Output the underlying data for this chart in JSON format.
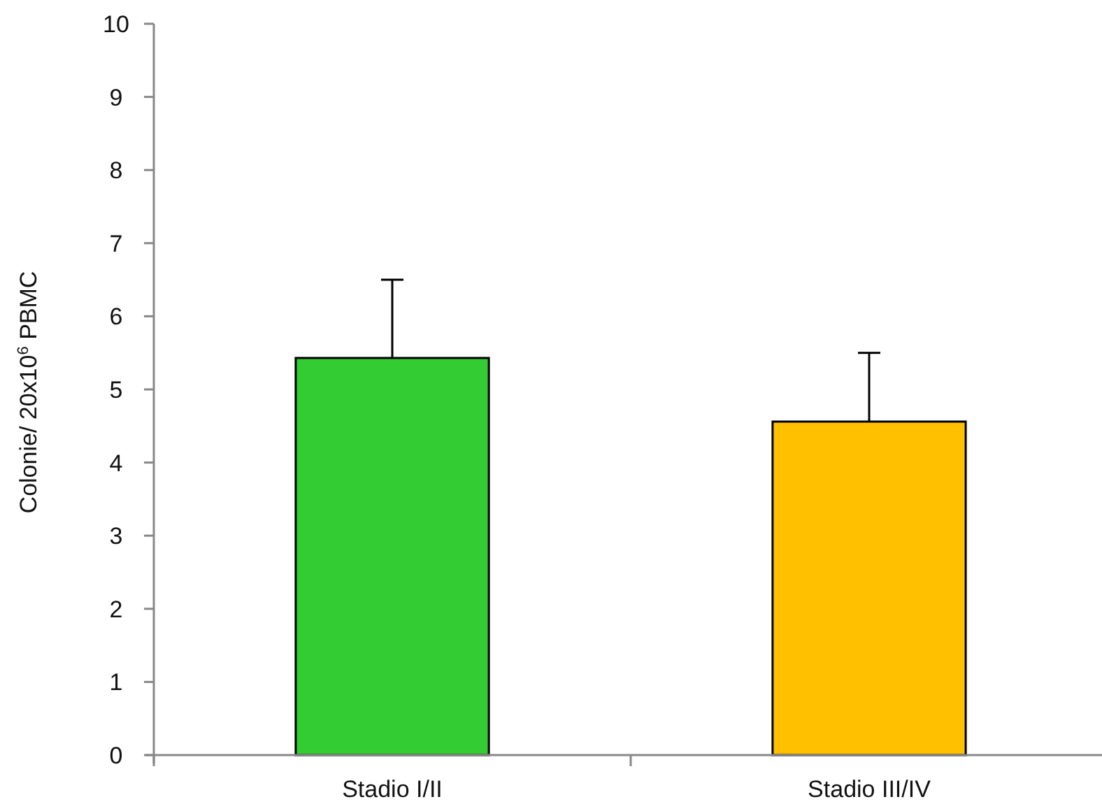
{
  "chart_data": {
    "type": "bar",
    "ylabel": "Colonie/ 20x10$^{6}$ PBMC",
    "categories": [
      "Stadio I/II",
      "Stadio III/IV"
    ],
    "values": [
      5.43,
      4.56
    ],
    "colors": [
      "#33cc33",
      "#ffc000"
    ],
    "errors": [
      [
        5.43,
        6.5
      ],
      [
        4.56,
        5.5
      ]
    ],
    "ylim": [
      0,
      10
    ],
    "yticks": [
      0,
      1,
      2,
      3,
      4,
      5,
      6,
      7,
      8,
      9,
      10
    ]
  }
}
